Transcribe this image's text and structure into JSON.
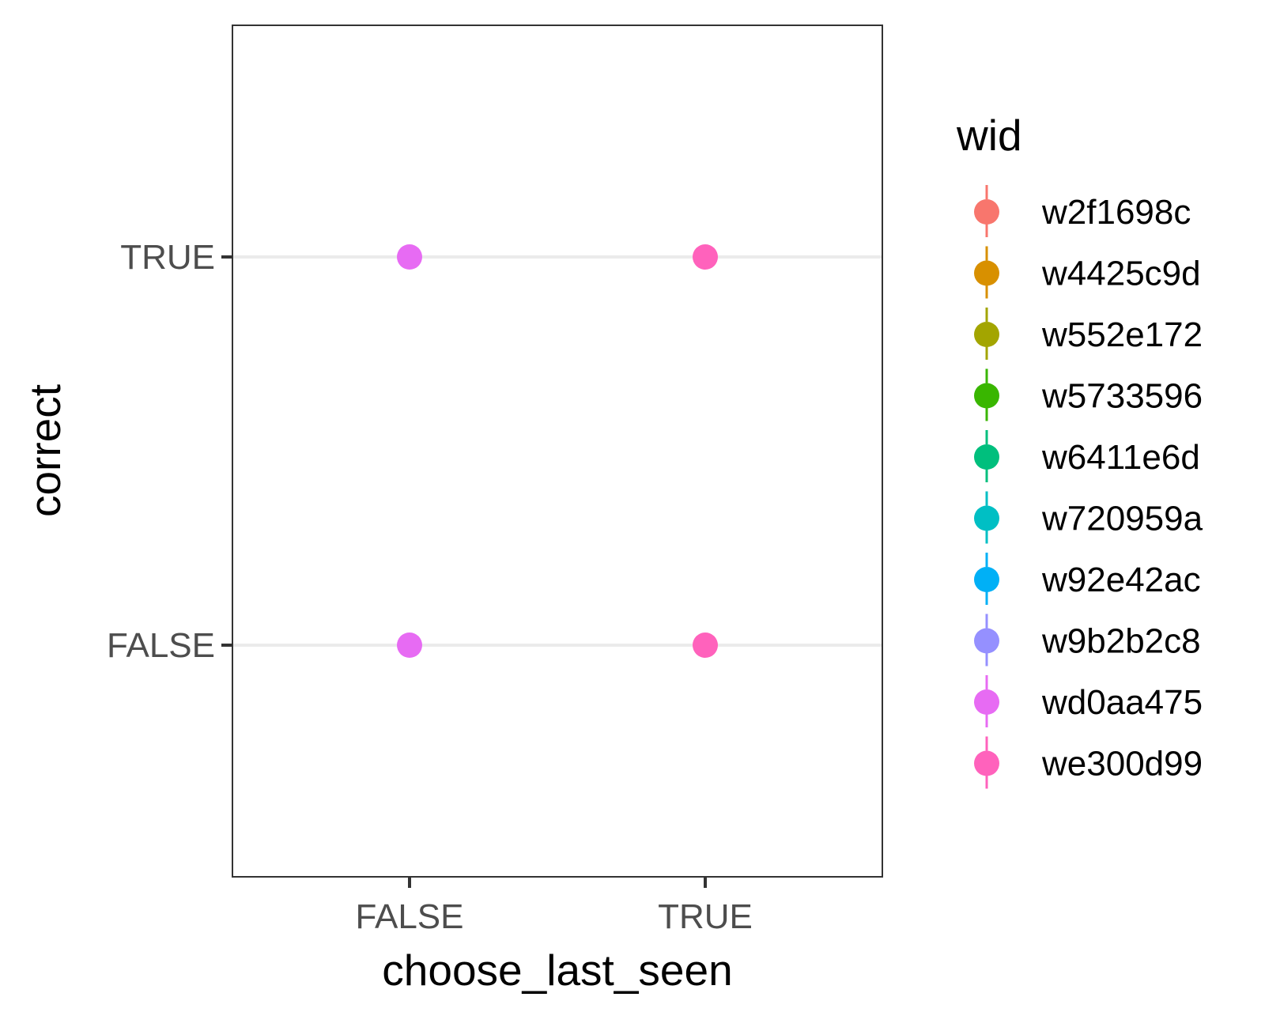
{
  "chart_data": {
    "type": "scatter",
    "title": "",
    "xlabel": "choose_last_seen",
    "ylabel": "correct",
    "x_categories": [
      "FALSE",
      "TRUE"
    ],
    "y_categories": [
      "FALSE",
      "TRUE"
    ],
    "grid": "major-y",
    "legend": {
      "title": "wid",
      "position": "right",
      "entries": [
        {
          "name": "w2f1698c",
          "color": "#F8766D"
        },
        {
          "name": "w4425c9d",
          "color": "#D89000"
        },
        {
          "name": "w552e172",
          "color": "#A3A500"
        },
        {
          "name": "w5733596",
          "color": "#39B600"
        },
        {
          "name": "w6411e6d",
          "color": "#00BF7D"
        },
        {
          "name": "w720959a",
          "color": "#00BFC4"
        },
        {
          "name": "w92e42ac",
          "color": "#00B0F6"
        },
        {
          "name": "w9b2b2c8",
          "color": "#9590FF"
        },
        {
          "name": "wd0aa475",
          "color": "#E76BF3"
        },
        {
          "name": "we300d99",
          "color": "#FF62BC"
        }
      ]
    },
    "points": [
      {
        "x": "FALSE",
        "y": "TRUE",
        "series": "wd0aa475",
        "color": "#E76BF3"
      },
      {
        "x": "FALSE",
        "y": "FALSE",
        "series": "wd0aa475",
        "color": "#E76BF3"
      },
      {
        "x": "TRUE",
        "y": "TRUE",
        "series": "we300d99",
        "color": "#FF62BC"
      },
      {
        "x": "TRUE",
        "y": "FALSE",
        "series": "we300d99",
        "color": "#FF62BC"
      }
    ]
  }
}
